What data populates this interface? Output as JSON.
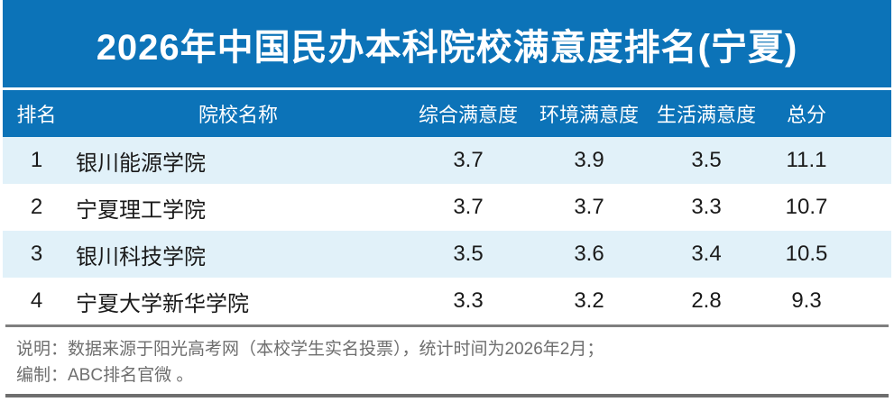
{
  "title": "2026年中国民办本科院校满意度排名(宁夏)",
  "chart_data": {
    "type": "table",
    "title": "2026年中国民办本科院校满意度排名(宁夏)",
    "columns": [
      "排名",
      "院校名称",
      "综合满意度",
      "环境满意度",
      "生活满意度",
      "总分"
    ],
    "rows": [
      [
        "1",
        "银川能源学院",
        "3.7",
        "3.9",
        "3.5",
        "11.1"
      ],
      [
        "2",
        "宁夏理工学院",
        "3.7",
        "3.7",
        "3.3",
        "10.7"
      ],
      [
        "3",
        "银川科技学院",
        "3.5",
        "3.6",
        "3.4",
        "10.5"
      ],
      [
        "4",
        "宁夏大学新华学院",
        "3.3",
        "3.2",
        "2.8",
        "9.3"
      ]
    ]
  },
  "footer": {
    "line1": "说明：数据来源于阳光高考网（本校学生实名投票），统计时间为2026年2月；",
    "line2": "编制：ABC排名官微 。"
  },
  "colors": {
    "accent_blue": "#0c73b8",
    "stripe_light_blue": "#e1f1f9",
    "title_text": "#ffffff",
    "body_text": "#1a1a1a",
    "footer_text": "#6e6e6e",
    "divider_gray": "#7f7f7f"
  }
}
